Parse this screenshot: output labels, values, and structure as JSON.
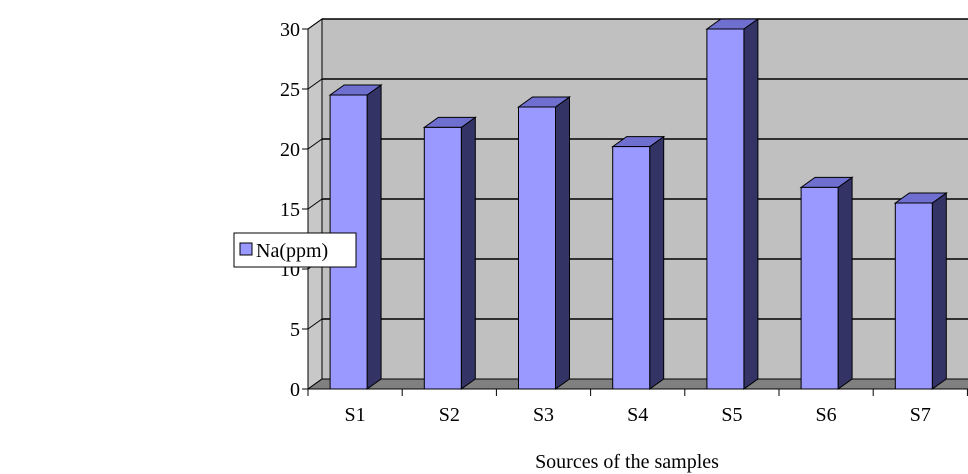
{
  "chart_data": {
    "type": "bar",
    "categories": [
      "S1",
      "S2",
      "S3",
      "S4",
      "S5",
      "S6",
      "S7"
    ],
    "series": [
      {
        "name": "Na(ppm)",
        "values": [
          24.5,
          21.8,
          23.5,
          20.2,
          30,
          16.8,
          15.5
        ]
      }
    ],
    "title": "",
    "xlabel": "Sources of the samples",
    "ylabel": "",
    "ylim": [
      0,
      30
    ],
    "yticks": [
      "0",
      "5",
      "10",
      "15",
      "20",
      "25",
      "30"
    ],
    "grid": true,
    "legend_position": "left",
    "bar_style": "3d"
  },
  "colors": {
    "bar_front": "#9999ff",
    "bar_side": "#333366",
    "bar_top": "#6f6fcf",
    "wall": "#c0c0c0",
    "floor": "#808080"
  }
}
